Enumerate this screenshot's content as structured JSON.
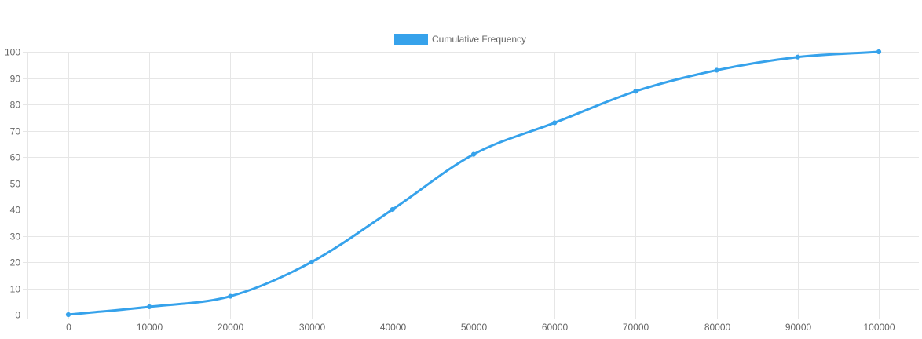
{
  "chart_data": {
    "type": "line",
    "x": [
      0,
      10000,
      20000,
      30000,
      40000,
      50000,
      60000,
      70000,
      80000,
      90000,
      100000
    ],
    "series": [
      {
        "name": "Cumulative Frequency",
        "values": [
          0,
          3,
          7,
          20,
          40,
          61,
          73,
          85,
          93,
          98,
          100
        ],
        "color": "#36a2eb"
      }
    ],
    "xticks": [
      "0",
      "10000",
      "20000",
      "30000",
      "40000",
      "50000",
      "60000",
      "70000",
      "80000",
      "90000",
      "100000"
    ],
    "yticks": [
      "0",
      "10",
      "20",
      "30",
      "40",
      "50",
      "60",
      "70",
      "80",
      "90",
      "100"
    ],
    "ylim": [
      0,
      100
    ],
    "legend": "top-center",
    "grid": true,
    "gridColor": "#e6e6e6",
    "axisColor": "#bfbfbf",
    "tickColor": "#666666"
  }
}
